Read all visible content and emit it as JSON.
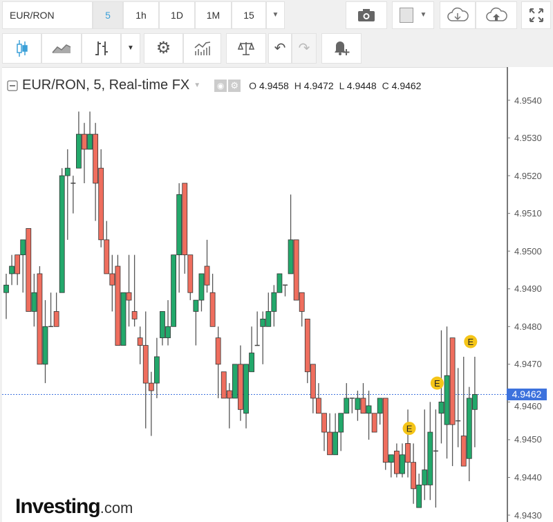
{
  "toolbar": {
    "symbol": "EUR/RON",
    "intervals": [
      {
        "label": "5",
        "active": true
      },
      {
        "label": "1h",
        "active": false
      },
      {
        "label": "1D",
        "active": false
      },
      {
        "label": "1M",
        "active": false
      },
      {
        "label": "15",
        "active": false
      }
    ],
    "icons_row1": [
      "caret-down-icon",
      "camera-icon",
      "color-swatch-icon",
      "cloud-download-icon",
      "cloud-upload-icon",
      "fullscreen-icon"
    ],
    "icons_row2": [
      "candlestick-icon",
      "area-chart-icon",
      "bar-chart-icon",
      "caret-down-icon",
      "gear-icon",
      "indicators-icon",
      "compare-scales-icon",
      "undo-icon",
      "redo-icon",
      "alert-add-icon"
    ]
  },
  "legend": {
    "title": "EUR/RON, 5, Real-time FX",
    "o_label": "O",
    "o": "4.9458",
    "h_label": "H",
    "h": "4.9472",
    "l_label": "L",
    "l": "4.9448",
    "c_label": "C",
    "c": "4.9462"
  },
  "logo": {
    "brand": "Investing",
    "suffix": ".com"
  },
  "colors": {
    "up": "#23a86b",
    "down": "#ef6e5e",
    "price_line": "#3d72dd",
    "event": "#f5c518"
  },
  "chart_data": {
    "type": "candlestick",
    "title": "EUR/RON, 5, Real-time FX",
    "interval": "5",
    "ylim": [
      4.943,
      4.9545
    ],
    "yticks": [
      "4.9540",
      "4.9530",
      "4.9520",
      "4.9510",
      "4.9500",
      "4.9490",
      "4.9480",
      "4.9470",
      "4.9460",
      "4.9450",
      "4.9440",
      "4.9430"
    ],
    "current_price": "4.9462",
    "grid": false,
    "candles": [
      [
        4.9489,
        4.9494,
        4.9482,
        4.9491
      ],
      [
        4.9494,
        4.9499,
        4.9491,
        4.9496
      ],
      [
        4.9499,
        4.9499,
        4.9491,
        4.9494
      ],
      [
        4.9499,
        4.9503,
        4.9489,
        4.9503
      ],
      [
        4.9506,
        4.9506,
        4.9484,
        4.9484
      ],
      [
        4.9484,
        4.9494,
        4.948,
        4.9489
      ],
      [
        4.9494,
        4.9496,
        4.947,
        4.947
      ],
      [
        4.947,
        4.9487,
        4.9465,
        4.948
      ],
      [
        4.948,
        4.9489,
        4.948,
        4.948
      ],
      [
        4.9484,
        4.9489,
        4.948,
        4.948
      ],
      [
        4.9489,
        4.9522,
        4.9489,
        4.952
      ],
      [
        4.952,
        4.9527,
        4.9503,
        4.9522
      ],
      [
        4.9518,
        4.952,
        4.951,
        4.9518
      ],
      [
        4.9522,
        4.9537,
        4.9522,
        4.9531
      ],
      [
        4.9531,
        4.9534,
        4.9518,
        4.9527
      ],
      [
        4.9527,
        4.9537,
        4.9527,
        4.9531
      ],
      [
        4.9531,
        4.9534,
        4.9508,
        4.9518
      ],
      [
        4.9522,
        4.9527,
        4.9501,
        4.9503
      ],
      [
        4.9503,
        4.9508,
        4.9494,
        4.9494
      ],
      [
        4.9494,
        4.9499,
        4.9484,
        4.9491
      ],
      [
        4.9496,
        4.9499,
        4.9475,
        4.9475
      ],
      [
        4.9475,
        4.9489,
        4.9475,
        4.9489
      ],
      [
        4.9489,
        4.9499,
        4.948,
        4.9487
      ],
      [
        4.9484,
        4.9499,
        4.948,
        4.9482
      ],
      [
        4.9477,
        4.948,
        4.947,
        4.9475
      ],
      [
        4.9475,
        4.9484,
        4.9453,
        4.9465
      ],
      [
        4.9465,
        4.9468,
        4.9451,
        4.9463
      ],
      [
        4.9465,
        4.9477,
        4.9461,
        4.9472
      ],
      [
        4.9477,
        4.9484,
        4.9475,
        4.9484
      ],
      [
        4.9477,
        4.9487,
        4.9475,
        4.948
      ],
      [
        4.948,
        4.9499,
        4.948,
        4.9499
      ],
      [
        4.9499,
        4.9518,
        4.9489,
        4.9515
      ],
      [
        4.9518,
        4.9518,
        4.9494,
        4.9499
      ],
      [
        4.9499,
        4.9499,
        4.9487,
        4.9489
      ],
      [
        4.9484,
        4.9487,
        4.9475,
        4.9487
      ],
      [
        4.9487,
        4.9494,
        4.9484,
        4.9494
      ],
      [
        4.9496,
        4.9503,
        4.9489,
        4.9491
      ],
      [
        4.9489,
        4.9494,
        4.948,
        4.948
      ],
      [
        4.9477,
        4.948,
        4.9461,
        4.947
      ],
      [
        4.9468,
        4.9468,
        4.9461,
        4.9461
      ],
      [
        4.9463,
        4.9465,
        4.9453,
        4.9461
      ],
      [
        4.9461,
        4.947,
        4.9461,
        4.947
      ],
      [
        4.947,
        4.9475,
        4.9455,
        4.9458
      ],
      [
        4.9457,
        4.947,
        4.9453,
        4.947
      ],
      [
        4.9468,
        4.948,
        4.9468,
        4.9473
      ],
      [
        4.9475,
        4.9484,
        4.9475,
        4.9475
      ],
      [
        4.948,
        4.9484,
        4.947,
        4.9482
      ],
      [
        4.948,
        4.9489,
        4.948,
        4.9484
      ],
      [
        4.9484,
        4.9491,
        4.948,
        4.9489
      ],
      [
        4.9489,
        4.9494,
        4.9489,
        4.9494
      ],
      [
        4.9491,
        4.9491,
        4.9488,
        4.9491
      ],
      [
        4.9494,
        4.9515,
        4.9494,
        4.9503
      ],
      [
        4.9503,
        4.9503,
        4.9487,
        4.9487
      ],
      [
        4.9489,
        4.9489,
        4.948,
        4.9484
      ],
      [
        4.9482,
        4.9482,
        4.9465,
        4.9468
      ],
      [
        4.947,
        4.947,
        4.9457,
        4.9461
      ],
      [
        4.9461,
        4.9465,
        4.9457,
        4.9457
      ],
      [
        4.9457,
        4.9457,
        4.9447,
        4.9452
      ],
      [
        4.9452,
        4.9457,
        4.9446,
        4.9446
      ],
      [
        4.9446,
        4.9457,
        4.9446,
        4.9452
      ],
      [
        4.9452,
        4.9457,
        4.9447,
        4.9457
      ],
      [
        4.9457,
        4.9465,
        4.9457,
        4.9461
      ],
      [
        4.9461,
        4.9461,
        4.9457,
        4.9461
      ],
      [
        4.9458,
        4.9463,
        4.9455,
        4.9461
      ],
      [
        4.9461,
        4.9465,
        4.9457,
        4.9457
      ],
      [
        4.9457,
        4.9463,
        4.945,
        4.9459
      ],
      [
        4.9457,
        4.9457,
        4.9452,
        4.9452
      ],
      [
        4.9457,
        4.9461,
        4.9454,
        4.9461
      ],
      [
        4.9461,
        4.9461,
        4.9442,
        4.9444
      ],
      [
        4.9444,
        4.9446,
        4.944,
        4.9446
      ],
      [
        4.9447,
        4.9449,
        4.944,
        4.9441
      ],
      [
        4.9441,
        4.9449,
        4.944,
        4.9446
      ],
      [
        4.9449,
        4.9458,
        4.944,
        4.9444
      ],
      [
        4.9444,
        4.9449,
        4.9433,
        4.9437
      ],
      [
        4.9432,
        4.9441,
        4.9432,
        4.9438
      ],
      [
        4.9438,
        4.9458,
        4.9434,
        4.9442
      ],
      [
        4.9438,
        4.946,
        4.9434,
        4.9452
      ],
      [
        4.9447,
        4.9458,
        4.9432,
        4.9447
      ],
      [
        4.9457,
        4.9479,
        4.9449,
        4.946
      ],
      [
        4.9454,
        4.948,
        4.9445,
        4.9467
      ],
      [
        4.9477,
        4.9477,
        4.9443,
        4.9454
      ],
      [
        4.9455,
        4.9469,
        4.9448,
        4.9455
      ],
      [
        4.9451,
        4.9472,
        4.9443,
        4.9443
      ],
      [
        4.9445,
        4.9464,
        4.9439,
        4.9461
      ],
      [
        4.9458,
        4.9472,
        4.9448,
        4.9462
      ]
    ],
    "events": [
      {
        "label": "E",
        "index": 72,
        "price": 4.9453
      },
      {
        "label": "E",
        "index": 77,
        "price": 4.9465
      },
      {
        "label": "E",
        "index": 83,
        "price": 4.9476
      }
    ]
  }
}
